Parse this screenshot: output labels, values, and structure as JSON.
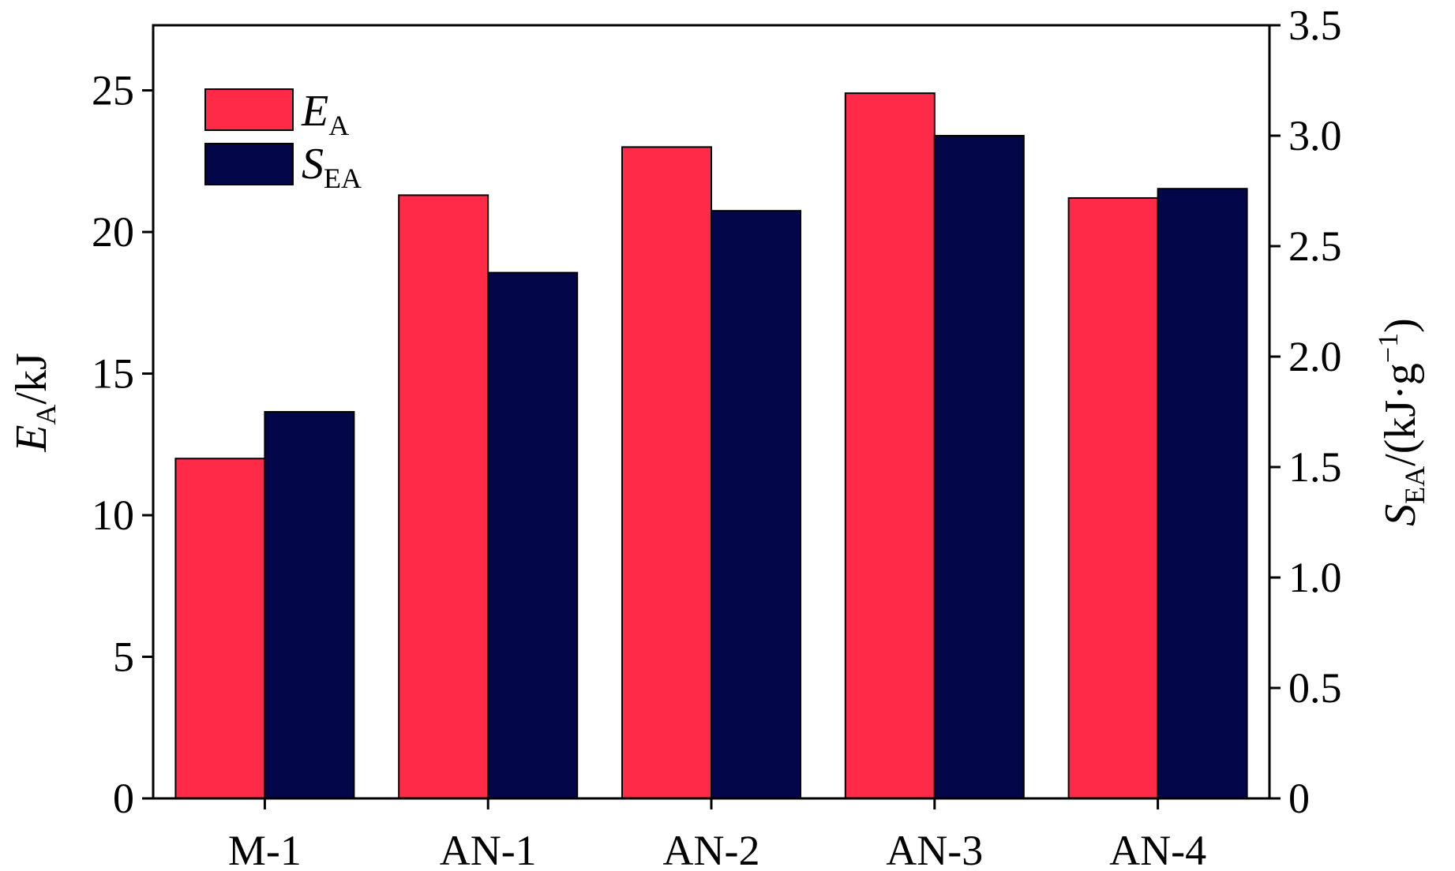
{
  "chart_data": {
    "type": "bar",
    "categories": [
      "M-1",
      "AN-1",
      "AN-2",
      "AN-3",
      "AN-4"
    ],
    "series": [
      {
        "name": "E_A",
        "axis": "left",
        "color": "#ff2a48",
        "values": [
          12.0,
          21.3,
          23.0,
          24.9,
          21.2
        ]
      },
      {
        "name": "S_EA",
        "axis": "right",
        "color": "#04064a",
        "values": [
          1.75,
          2.38,
          2.66,
          3.0,
          2.76
        ]
      }
    ],
    "y_left": {
      "label_main": "E",
      "label_sub": "A",
      "label_rest": "/kJ",
      "lim": [
        0,
        27.3
      ],
      "ticks": [
        0,
        5,
        10,
        15,
        20,
        25
      ],
      "tick_labels": [
        "0",
        "5",
        "10",
        "15",
        "20",
        "25"
      ]
    },
    "y_right": {
      "label_main": "S",
      "label_sub": "EA",
      "label_rest": "/(kJ·g",
      "label_sup": "−1",
      "label_end": ")",
      "lim": [
        0,
        3.5
      ],
      "ticks": [
        0,
        0.5,
        1.0,
        1.5,
        2.0,
        2.5,
        3.0,
        3.5
      ],
      "tick_labels": [
        "0",
        "0.5",
        "1.0",
        "1.5",
        "2.0",
        "2.5",
        "3.0",
        "3.5"
      ]
    },
    "legend": {
      "position": "top-left",
      "entries": [
        {
          "main": "E",
          "sub": "A"
        },
        {
          "main": "S",
          "sub": "EA"
        }
      ]
    },
    "grid": false
  }
}
